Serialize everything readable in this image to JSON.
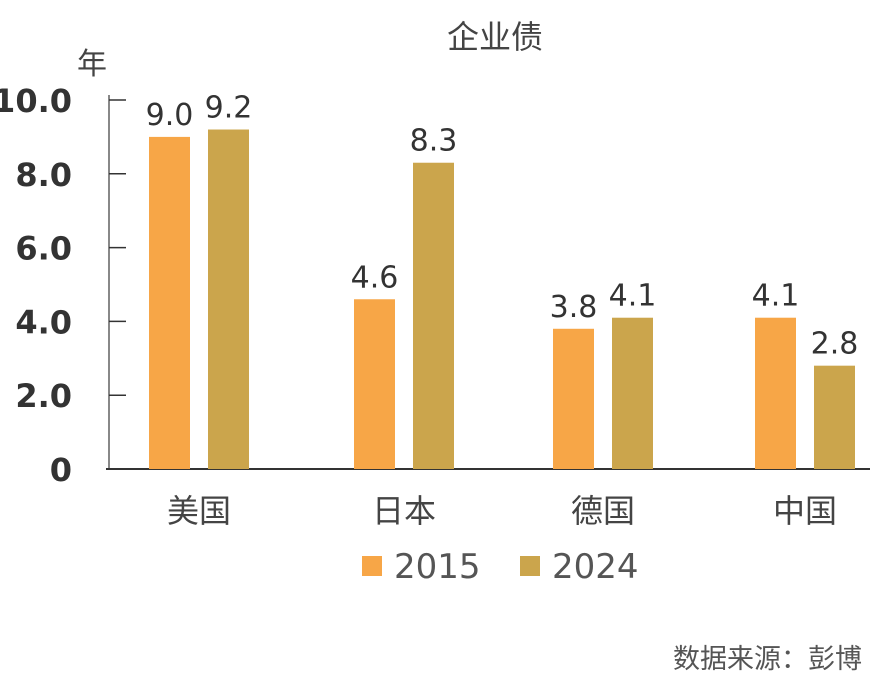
{
  "chart_data": {
    "type": "bar",
    "title": "企业债",
    "ylabel": "年",
    "xlabel": "",
    "categories": [
      "美国",
      "日本",
      "德国",
      "中国"
    ],
    "series": [
      {
        "name": "2015",
        "values": [
          9.0,
          4.6,
          3.8,
          4.1
        ],
        "color": "#F7A647"
      },
      {
        "name": "2024",
        "values": [
          9.2,
          8.3,
          4.1,
          2.8
        ],
        "color": "#CBA54C"
      }
    ],
    "ylim": [
      0,
      10
    ],
    "yticks": [
      "0",
      "2.0",
      "4.0",
      "6.0",
      "8.0",
      "10.0"
    ],
    "legend": "bottom",
    "grid": false,
    "source": "数据来源：彭博"
  }
}
